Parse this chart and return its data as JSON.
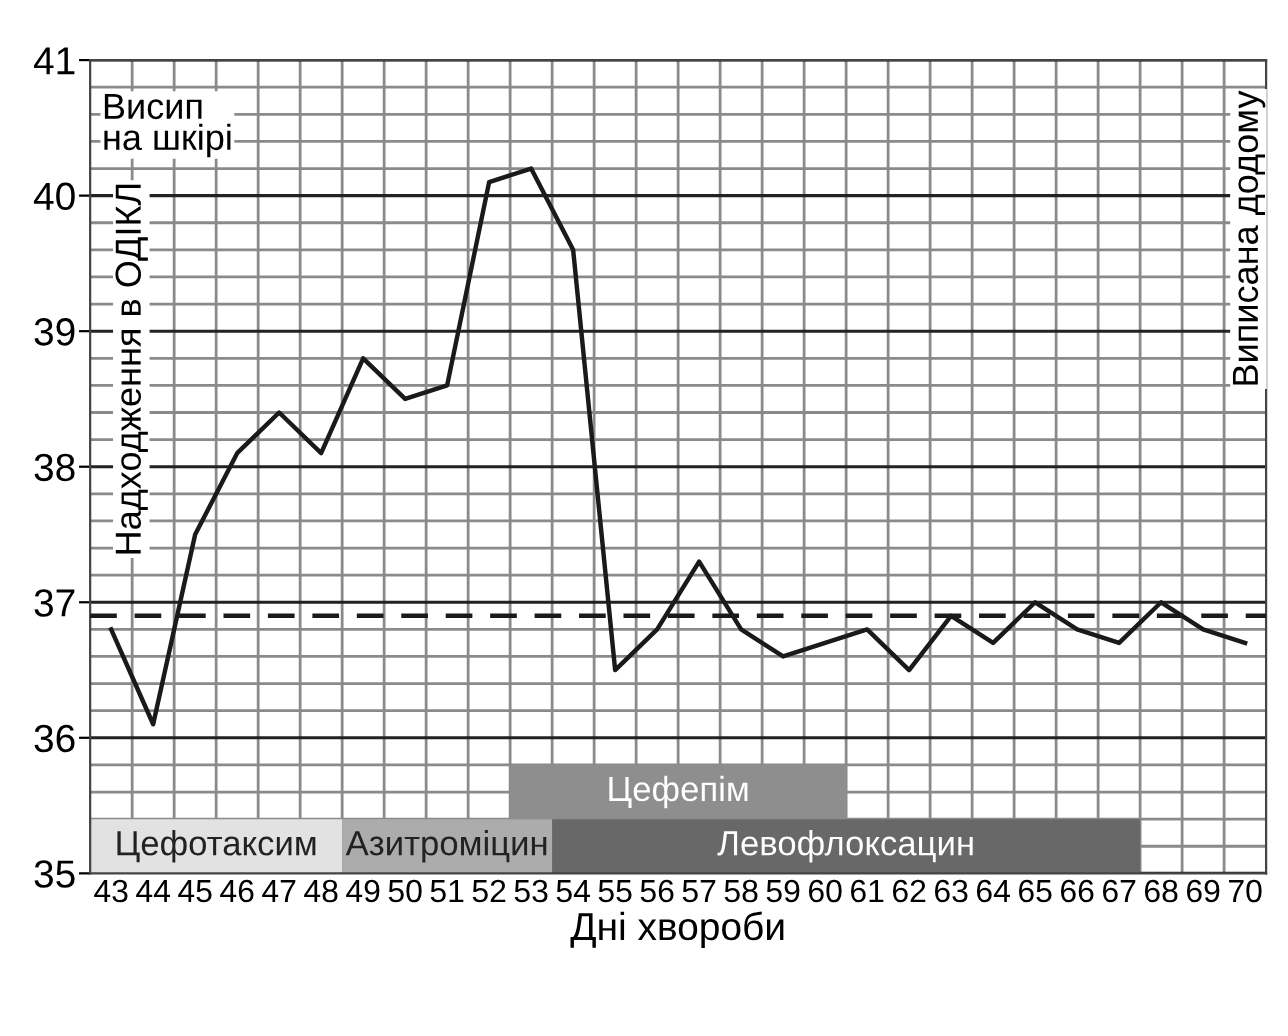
{
  "chart_data": {
    "type": "line",
    "xlabel": "Дні хвороби",
    "x": [
      43,
      44,
      45,
      46,
      47,
      48,
      49,
      50,
      51,
      52,
      53,
      54,
      55,
      56,
      57,
      58,
      59,
      60,
      61,
      62,
      63,
      64,
      65,
      66,
      67,
      68,
      69,
      70
    ],
    "series": [
      {
        "color": "#1a1a1a",
        "values": [
          36.8,
          36.1,
          37.5,
          38.1,
          38.4,
          38.1,
          38.8,
          38.5,
          38.6,
          40.1,
          40.2,
          39.6,
          36.5,
          36.8,
          37.3,
          36.8,
          36.6,
          36.7,
          36.8,
          36.5,
          36.9,
          36.7,
          37.0,
          36.8,
          36.7,
          37.0,
          36.8,
          36.7
        ]
      }
    ],
    "xlim": [
      42.5,
      70.5
    ],
    "ylim": [
      35,
      41
    ],
    "xticks": [
      43,
      44,
      45,
      46,
      47,
      48,
      49,
      50,
      51,
      52,
      53,
      54,
      55,
      56,
      57,
      58,
      59,
      60,
      61,
      62,
      63,
      64,
      65,
      66,
      67,
      68,
      69,
      70
    ],
    "yticks": [
      35,
      36,
      37,
      38,
      39,
      40,
      41
    ],
    "grid": true,
    "marker": "none",
    "line_style": "solid",
    "legend": false,
    "ref_lines": [
      {
        "axis": "y",
        "value": 36.9,
        "color": "#1a1a1a",
        "line_style": "dashed"
      }
    ],
    "bands": [
      {
        "axis": "x",
        "from": 42.5,
        "to": 48.5,
        "label": "Цефотаксим",
        "color": "#e2e2e2"
      },
      {
        "axis": "x",
        "from": 48.5,
        "to": 53.5,
        "label": "Азитроміцин",
        "color": "#acacac"
      },
      {
        "axis": "x",
        "from": 52.5,
        "to": 60.5,
        "label": "Цефепім",
        "color": "#8e8e8e"
      },
      {
        "axis": "x",
        "from": 53.5,
        "to": 67.5,
        "label": "Левофлоксацин",
        "color": "#686868"
      }
    ],
    "annotations": [
      "Висип\nна шкірі",
      "Надходження в ОДІКЛ",
      "Виписана додому"
    ]
  }
}
